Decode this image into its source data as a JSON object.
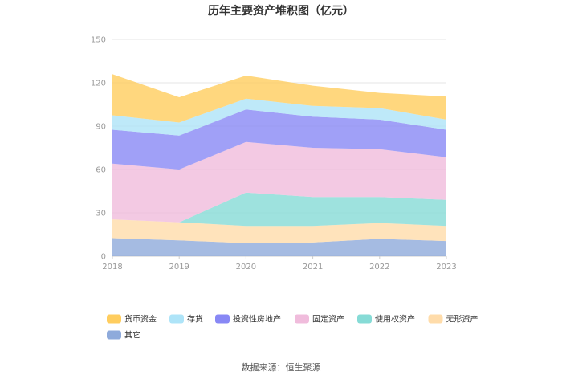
{
  "chart_data": {
    "type": "area",
    "stacked": true,
    "title": "历年主要资产堆积图（亿元）",
    "x": [
      "2018",
      "2019",
      "2020",
      "2021",
      "2022",
      "2023"
    ],
    "ylim": [
      0,
      150
    ],
    "yticks": [
      "0",
      "30",
      "60",
      "90",
      "120",
      "150"
    ],
    "grid": true,
    "legend_position": "bottom-left",
    "series": [
      {
        "name": "其它",
        "color": "#8eaadb",
        "values": [
          12.5,
          11.0,
          9.0,
          9.5,
          12.0,
          10.5
        ]
      },
      {
        "name": "无形资产",
        "color": "#ffdcaa",
        "values": [
          13.0,
          12.5,
          12.0,
          11.5,
          11.0,
          10.5
        ]
      },
      {
        "name": "使用权资产",
        "color": "#86dbd6",
        "values": [
          0.0,
          0.0,
          23.0,
          20.0,
          18.0,
          18.0
        ]
      },
      {
        "name": "固定资产",
        "color": "#f0bcdc",
        "values": [
          38.5,
          36.5,
          35.0,
          34.0,
          33.0,
          29.5
        ]
      },
      {
        "name": "投资性房地产",
        "color": "#8888f5",
        "values": [
          23.5,
          23.5,
          22.5,
          21.5,
          20.5,
          19.0
        ]
      },
      {
        "name": "存货",
        "color": "#aee4f8",
        "values": [
          10.0,
          9.0,
          7.5,
          7.5,
          8.0,
          7.0
        ]
      },
      {
        "name": "货币资金",
        "color": "#ffcd5e",
        "values": [
          28.5,
          17.5,
          16.0,
          14.0,
          10.5,
          16.0
        ]
      }
    ],
    "legend_order": [
      "货币资金",
      "存货",
      "投资性房地产",
      "固定资产",
      "使用权资产",
      "无形资产",
      "其它"
    ]
  },
  "source": "数据来源：恒生聚源"
}
